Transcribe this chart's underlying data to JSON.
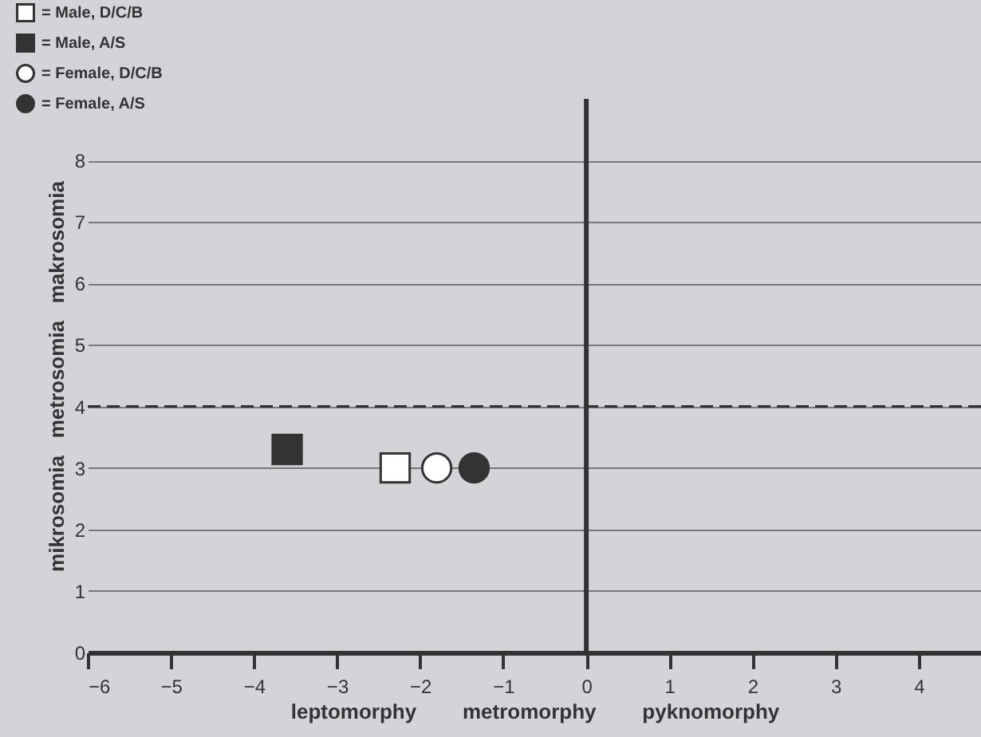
{
  "chart_data": {
    "type": "scatter",
    "xlabel": "leptomorphy        metromorphy        pyknomorphy",
    "ylabel": "mikrosomia   metrosomia   makrosomia",
    "series": [
      {
        "name": "= Male, D/C/B",
        "color": "#ffffff",
        "marker": "square",
        "x": [
          -2.3
        ],
        "values": [
          3.0
        ]
      },
      {
        "name": "= Male, A/S",
        "color": "#333333",
        "marker": "square",
        "x": [
          -3.6
        ],
        "values": [
          3.3
        ]
      },
      {
        "name": "= Female, D/C/B",
        "color": "#ffffff",
        "marker": "circle",
        "x": [
          -1.8
        ],
        "values": [
          3.0
        ]
      },
      {
        "name": "= Female, A/S",
        "color": "#333333",
        "marker": "circle",
        "x": [
          -1.35
        ],
        "values": [
          3.0
        ]
      }
    ],
    "xlim": [
      -6,
      4.75
    ],
    "xticks": [
      -6,
      -5,
      -4,
      -3,
      -2,
      -1,
      0,
      1,
      2,
      3,
      4
    ],
    "ylim": [
      0,
      9
    ],
    "yticks": [
      0,
      1,
      2,
      3,
      4,
      5,
      6,
      7,
      8
    ],
    "grid": "y",
    "legend": "top left",
    "ref_lines": [
      {
        "axis": "y",
        "value": 4,
        "line_style": "dashed"
      },
      {
        "axis": "x",
        "value": 0,
        "line_style": "solid"
      }
    ]
  }
}
